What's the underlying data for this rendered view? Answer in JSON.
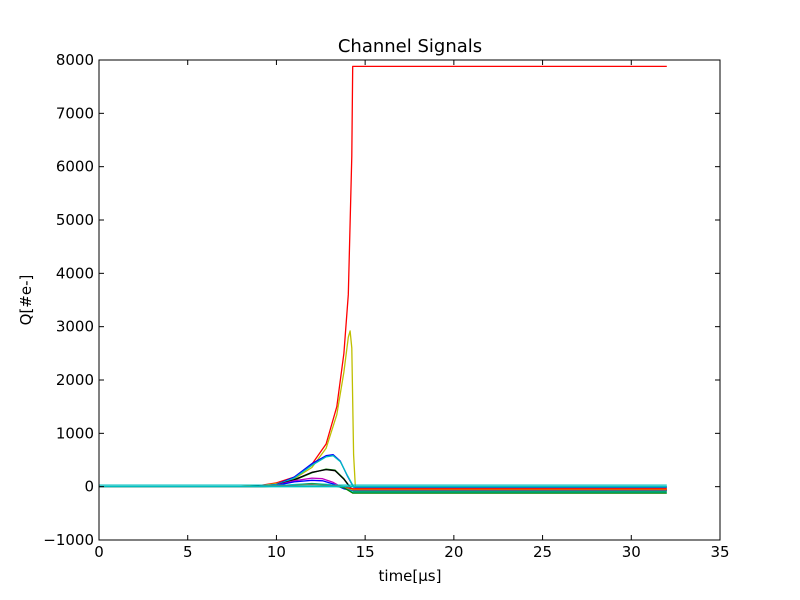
{
  "chart_data": {
    "type": "line",
    "title": "Channel Signals",
    "xlabel": "time[μs]",
    "ylabel": "Q[#e-]",
    "xlim": [
      0,
      35
    ],
    "ylim": [
      -1000,
      8000
    ],
    "xticks": [
      "0",
      "5",
      "10",
      "15",
      "20",
      "25",
      "30",
      "35"
    ],
    "yticks": [
      "−1000",
      "0",
      "1000",
      "2000",
      "3000",
      "4000",
      "5000",
      "6000",
      "7000",
      "8000"
    ],
    "grid": false,
    "legend": "none",
    "series": [
      {
        "color": "#ff0000",
        "points": [
          [
            0,
            0
          ],
          [
            8,
            0
          ],
          [
            9,
            20
          ],
          [
            10,
            70
          ],
          [
            11,
            180
          ],
          [
            12,
            420
          ],
          [
            12.8,
            800
          ],
          [
            13.4,
            1500
          ],
          [
            13.8,
            2500
          ],
          [
            14.05,
            3600
          ],
          [
            14.25,
            6200
          ],
          [
            14.3,
            7880
          ],
          [
            32,
            7880
          ]
        ]
      },
      {
        "color": "#bfbf00",
        "points": [
          [
            0,
            0
          ],
          [
            8,
            0
          ],
          [
            9,
            15
          ],
          [
            10,
            55
          ],
          [
            11,
            150
          ],
          [
            12,
            360
          ],
          [
            12.8,
            720
          ],
          [
            13.4,
            1350
          ],
          [
            13.8,
            2150
          ],
          [
            14.05,
            2800
          ],
          [
            14.15,
            2920
          ],
          [
            14.25,
            2600
          ],
          [
            14.35,
            600
          ],
          [
            14.45,
            -20
          ],
          [
            32,
            -20
          ]
        ]
      },
      {
        "color": "#0000ff",
        "points": [
          [
            0,
            0
          ],
          [
            8.5,
            0
          ],
          [
            10,
            40
          ],
          [
            11,
            180
          ],
          [
            12,
            430
          ],
          [
            12.8,
            580
          ],
          [
            13.2,
            600
          ],
          [
            13.6,
            480
          ],
          [
            14.0,
            200
          ],
          [
            14.35,
            -10
          ],
          [
            32,
            -10
          ]
        ]
      },
      {
        "color": "#00bfbf",
        "points": [
          [
            0,
            0
          ],
          [
            8.5,
            0
          ],
          [
            10,
            35
          ],
          [
            11,
            160
          ],
          [
            12,
            400
          ],
          [
            12.8,
            560
          ],
          [
            13.2,
            580
          ],
          [
            13.6,
            470
          ],
          [
            14.0,
            210
          ],
          [
            14.35,
            0
          ],
          [
            32,
            0
          ]
        ]
      },
      {
        "color": "#008000",
        "points": [
          [
            0,
            0
          ],
          [
            8.5,
            0
          ],
          [
            10,
            25
          ],
          [
            11,
            120
          ],
          [
            12,
            260
          ],
          [
            12.8,
            330
          ],
          [
            13.3,
            310
          ],
          [
            13.8,
            150
          ],
          [
            14.2,
            -30
          ],
          [
            14.35,
            -80
          ],
          [
            32,
            -80
          ]
        ]
      },
      {
        "color": "#000000",
        "points": [
          [
            0,
            0
          ],
          [
            8.5,
            0
          ],
          [
            10,
            30
          ],
          [
            11,
            130
          ],
          [
            12,
            270
          ],
          [
            12.8,
            320
          ],
          [
            13.3,
            300
          ],
          [
            13.8,
            140
          ],
          [
            14.2,
            -30
          ],
          [
            14.35,
            -60
          ],
          [
            32,
            -60
          ]
        ]
      },
      {
        "color": "#bf00bf",
        "points": [
          [
            0,
            0
          ],
          [
            9,
            0
          ],
          [
            10,
            30
          ],
          [
            11,
            110
          ],
          [
            12,
            160
          ],
          [
            12.6,
            150
          ],
          [
            13.2,
            80
          ],
          [
            13.8,
            -30
          ],
          [
            14.3,
            -50
          ],
          [
            32,
            -50
          ]
        ]
      },
      {
        "color": "#0000ff",
        "points": [
          [
            0,
            0
          ],
          [
            9,
            0
          ],
          [
            10,
            25
          ],
          [
            11,
            90
          ],
          [
            12,
            120
          ],
          [
            12.6,
            110
          ],
          [
            13.2,
            50
          ],
          [
            13.8,
            -40
          ],
          [
            14.3,
            -70
          ],
          [
            32,
            -70
          ]
        ]
      },
      {
        "color": "#00bfbf",
        "points": [
          [
            0,
            0
          ],
          [
            9,
            0
          ],
          [
            10,
            15
          ],
          [
            11,
            40
          ],
          [
            12,
            60
          ],
          [
            13,
            40
          ],
          [
            13.8,
            -20
          ],
          [
            14.3,
            -100
          ],
          [
            32,
            -100
          ]
        ]
      },
      {
        "color": "#008000",
        "points": [
          [
            0,
            0
          ],
          [
            9,
            0
          ],
          [
            10,
            10
          ],
          [
            11,
            30
          ],
          [
            12,
            50
          ],
          [
            13,
            30
          ],
          [
            13.8,
            -20
          ],
          [
            14.3,
            -120
          ],
          [
            32,
            -120
          ]
        ]
      },
      {
        "color": "#bfbf00",
        "points": [
          [
            0,
            0
          ],
          [
            9,
            0
          ],
          [
            10,
            10
          ],
          [
            11,
            30
          ],
          [
            12,
            40
          ],
          [
            13,
            25
          ],
          [
            13.8,
            0
          ],
          [
            14.3,
            -60
          ],
          [
            32,
            -60
          ]
        ]
      },
      {
        "color": "#ff0000",
        "points": [
          [
            0,
            0
          ],
          [
            9,
            0
          ],
          [
            10,
            8
          ],
          [
            11,
            25
          ],
          [
            12,
            35
          ],
          [
            13,
            20
          ],
          [
            13.8,
            0
          ],
          [
            14.3,
            -40
          ],
          [
            32,
            -40
          ]
        ]
      },
      {
        "color": "#00bfbf",
        "points": [
          [
            0,
            0
          ],
          [
            32,
            0
          ]
        ]
      },
      {
        "color": "#00bfbf",
        "points": [
          [
            0,
            30
          ],
          [
            32,
            30
          ]
        ]
      }
    ]
  }
}
